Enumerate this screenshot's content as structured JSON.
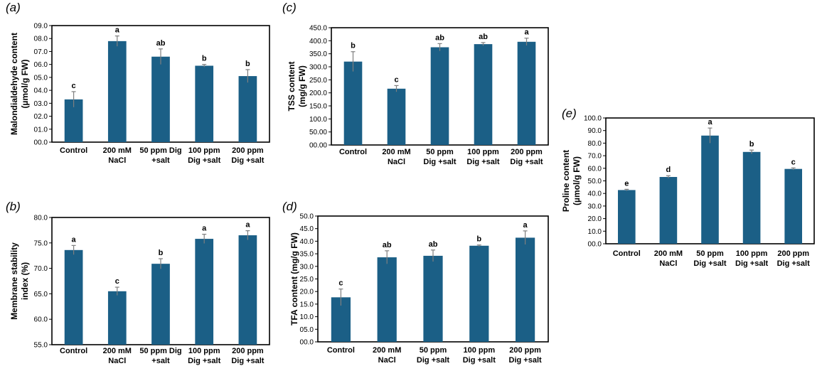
{
  "colors": {
    "bar": "#1b5f86",
    "error_bar": "#7f7f7f",
    "frame": "#000000"
  },
  "chart_data": [
    {
      "id": "a",
      "panel_label": "(a)",
      "type": "bar",
      "ylabel_lines": [
        "Malondialdehyde content",
        "(µmol/g FW)"
      ],
      "categories": [
        [
          "Control"
        ],
        [
          "200 mM",
          "NaCl"
        ],
        [
          "50 ppm Dig",
          "+salt"
        ],
        [
          "100 ppm",
          "Dig +salt"
        ],
        [
          "200 ppm",
          "Dig +salt"
        ]
      ],
      "values": [
        3.3,
        7.8,
        6.6,
        5.9,
        5.1
      ],
      "errors": [
        0.6,
        0.4,
        0.6,
        0.1,
        0.5
      ],
      "letters": [
        "c",
        "a",
        "ab",
        "b",
        "b"
      ],
      "ylim": [
        0,
        9
      ],
      "yticks": [
        0,
        1,
        2,
        3,
        4,
        5,
        6,
        7,
        8,
        9
      ],
      "tick_labels": [
        "00.0",
        "01.0",
        "02.0",
        "03.0",
        "04.0",
        "05.0",
        "06.0",
        "07.0",
        "08.0",
        "09.0"
      ]
    },
    {
      "id": "b",
      "panel_label": "(b)",
      "type": "bar",
      "ylabel_lines": [
        "Membrane stability",
        "index (%)"
      ],
      "categories": [
        [
          "Control"
        ],
        [
          "200 mM",
          "NaCl"
        ],
        [
          "50 ppm Dig",
          "+salt"
        ],
        [
          "100 ppm",
          "Dig +salt"
        ],
        [
          "200 ppm",
          "Dig +salt"
        ]
      ],
      "values": [
        73.6,
        65.5,
        70.9,
        75.8,
        76.5
      ],
      "errors": [
        0.9,
        0.8,
        1.0,
        0.9,
        0.9
      ],
      "letters": [
        "a",
        "c",
        "b",
        "a",
        "a"
      ],
      "ylim": [
        55,
        80
      ],
      "yticks": [
        55,
        60,
        65,
        70,
        75,
        80
      ],
      "tick_labels": [
        "55.0",
        "60.0",
        "65.0",
        "70.0",
        "75.0",
        "80.0"
      ]
    },
    {
      "id": "c",
      "panel_label": "(c)",
      "type": "bar",
      "ylabel_lines": [
        "TSS content",
        "(mg/g FW)"
      ],
      "categories": [
        [
          "Control"
        ],
        [
          "200 mM",
          "NaCl"
        ],
        [
          "50 ppm",
          "Dig +salt"
        ],
        [
          "100 ppm",
          "Dig +salt"
        ],
        [
          "200 ppm",
          "Dig +salt"
        ]
      ],
      "values": [
        320,
        216,
        375,
        387,
        396
      ],
      "errors": [
        38,
        12,
        14,
        6,
        14
      ],
      "letters": [
        "b",
        "c",
        "ab",
        "ab",
        "a"
      ],
      "ylim": [
        0,
        450
      ],
      "yticks": [
        0,
        50,
        100,
        150,
        200,
        250,
        300,
        350,
        400,
        450
      ],
      "tick_labels": [
        "00.00",
        "50.00",
        "100.0",
        "150.0",
        "200.0",
        "250.0",
        "300.0",
        "350.0",
        "400.0",
        "450.0"
      ]
    },
    {
      "id": "d",
      "panel_label": "(d)",
      "type": "bar",
      "ylabel_lines": [
        "TFA content (mg/g FW)"
      ],
      "categories": [
        [
          "Control"
        ],
        [
          "200 mM",
          "NaCl"
        ],
        [
          "50 ppm",
          "Dig +salt"
        ],
        [
          "100 ppm",
          "Dig +salt"
        ],
        [
          "200 ppm",
          "Dig +salt"
        ]
      ],
      "values": [
        17.7,
        33.6,
        34.2,
        38.2,
        41.4
      ],
      "errors": [
        3.3,
        2.6,
        2.3,
        0.3,
        2.7
      ],
      "letters": [
        "c",
        "ab",
        "ab",
        "b",
        "a"
      ],
      "ylim": [
        0,
        50
      ],
      "yticks": [
        0,
        5,
        10,
        15,
        20,
        25,
        30,
        35,
        40,
        45,
        50
      ],
      "tick_labels": [
        "00.0",
        "05.0",
        "10.0",
        "15.0",
        "20.0",
        "25.0",
        "30.0",
        "35.0",
        "40.0",
        "45.0",
        "50.0"
      ]
    },
    {
      "id": "e",
      "panel_label": "(e)",
      "type": "bar",
      "ylabel_lines": [
        "Proline content",
        "(µmol/g FW)"
      ],
      "categories": [
        [
          "Control"
        ],
        [
          "200 mM",
          "NaCl"
        ],
        [
          "50 ppm",
          "Dig +salt"
        ],
        [
          "100 ppm",
          "Dig +salt"
        ],
        [
          "200 ppm",
          "Dig +salt"
        ]
      ],
      "values": [
        42.7,
        53.1,
        86,
        73,
        59.5
      ],
      "errors": [
        0.6,
        1.0,
        6.0,
        1.5,
        0.8
      ],
      "letters": [
        "e",
        "d",
        "a",
        "b",
        "c"
      ],
      "ylim": [
        0,
        100
      ],
      "yticks": [
        0,
        10,
        20,
        30,
        40,
        50,
        60,
        70,
        80,
        90,
        100
      ],
      "tick_labels": [
        "00.0",
        "10.0",
        "20.0",
        "30.0",
        "40.0",
        "50.0",
        "60.0",
        "70.0",
        "80.0",
        "90.0",
        "100.0"
      ]
    }
  ]
}
